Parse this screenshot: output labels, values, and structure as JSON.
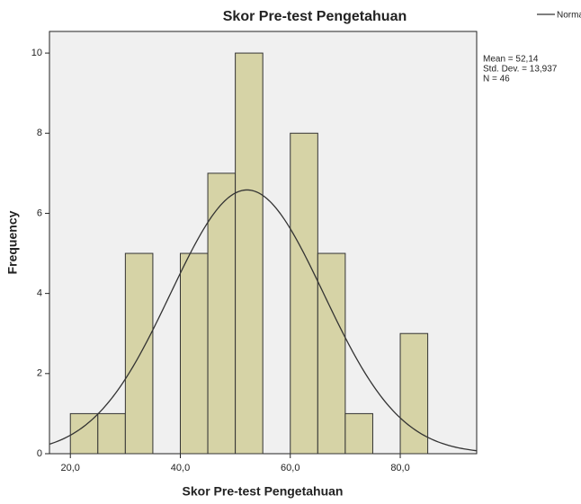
{
  "chart_data": {
    "type": "histogram",
    "title": "Skor Pre-test Pengetahuan",
    "xlabel": "Skor Pre-test Pengetahuan",
    "ylabel": "Frequency",
    "bins": [
      20,
      25,
      30,
      35,
      40,
      45,
      50,
      55,
      60,
      65,
      70,
      75,
      80,
      85
    ],
    "counts": [
      1,
      1,
      5,
      0,
      5,
      7,
      10,
      0,
      8,
      5,
      1,
      0,
      3
    ],
    "color": "#d6d3a6",
    "curve_color": "#333333",
    "legend": "Normal",
    "stats": [
      {
        "value": 52.14,
        "label": "Mean = 52,14"
      },
      {
        "value": 13.937,
        "label": "Std. Dev. = 13,937"
      },
      {
        "value": 46,
        "label": "N = 46"
      }
    ],
    "xlim": [
      16.2,
      93.9
    ],
    "ylim": [
      0,
      10.54
    ],
    "xticks": [
      {
        "value": 20,
        "label": "20,0"
      },
      {
        "value": 40,
        "label": "40,0"
      },
      {
        "value": 60,
        "label": "60,0"
      },
      {
        "value": 80,
        "label": "80,0"
      }
    ],
    "yticks": [
      0,
      2,
      4,
      6,
      8,
      10
    ]
  }
}
